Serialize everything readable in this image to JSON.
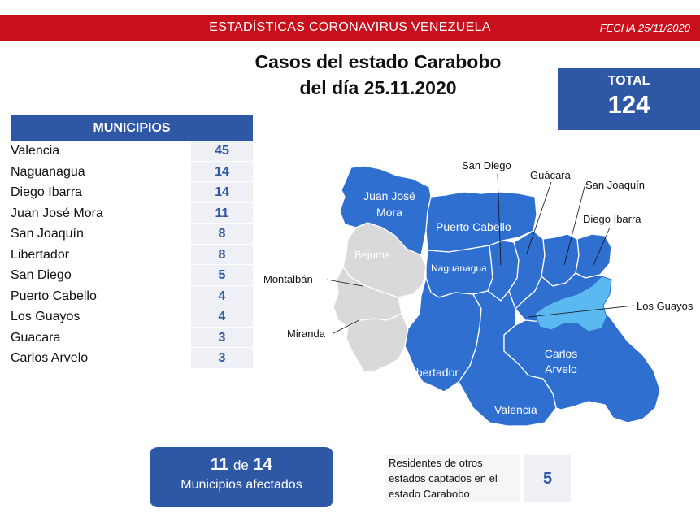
{
  "header": {
    "title": "ESTADÍSTICAS CORONAVIRUS VENEZUELA",
    "date": "FECHA 25/11/2020"
  },
  "headline": {
    "line1": "Casos del estado Carabobo",
    "line2": "del día 25.11.2020"
  },
  "total": {
    "label": "TOTAL",
    "value": "124"
  },
  "municipios": {
    "header": "MUNICIPIOS",
    "rows": [
      {
        "name": "Valencia",
        "value": "45"
      },
      {
        "name": "Naguanagua",
        "value": "14"
      },
      {
        "name": "Diego Ibarra",
        "value": "14"
      },
      {
        "name": "Juan José Mora",
        "value": "11"
      },
      {
        "name": "San Joaquín",
        "value": "8"
      },
      {
        "name": "Libertador",
        "value": "8"
      },
      {
        "name": "San Diego",
        "value": "5"
      },
      {
        "name": "Puerto Cabello",
        "value": "4"
      },
      {
        "name": "Los Guayos",
        "value": "4"
      },
      {
        "name": "Guacara",
        "value": "3"
      },
      {
        "name": "Carlos Arvelo",
        "value": "3"
      }
    ]
  },
  "map": {
    "labels": {
      "juan_jose_mora_1": "Juan José",
      "juan_jose_mora_2": "Mora",
      "puerto_cabello": "Puerto Cabello",
      "bejuma": "Bejuma",
      "naguanagua": "Naguanagua",
      "libertador": "Libertador",
      "valencia": "Valencia",
      "carlos_arvelo_1": "Carlos",
      "carlos_arvelo_2": "Arvelo",
      "san_diego": "San Diego",
      "guacara": "Guácara",
      "san_joaquin": "San Joaquín",
      "diego_ibarra": "Diego Ibarra",
      "los_guayos": "Los Guayos",
      "montalban": "Montalbán",
      "miranda": "Miranda"
    },
    "colors": {
      "affected": "#2e6fd0",
      "unaffected": "#d9d9d9",
      "lake": "#5cb8f0"
    }
  },
  "affected": {
    "count": "11",
    "of": "de",
    "total": "14",
    "label": "Municipios afectados"
  },
  "residents": {
    "line1": "Residentes de otros",
    "line2": "estados captados en el",
    "line3": "estado Carabobo",
    "value": "5"
  }
}
